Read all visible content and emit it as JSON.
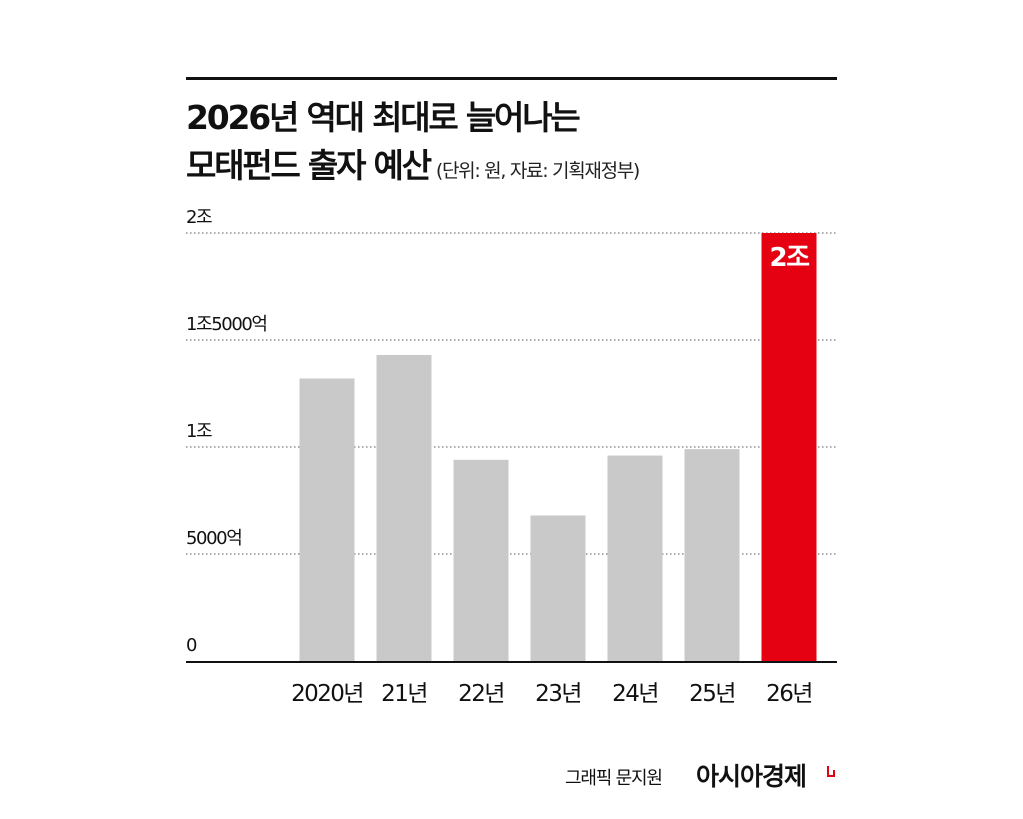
{
  "title": {
    "line1": "2026년 역대 최대로 늘어나는",
    "line2": "모태펀드 출자 예산",
    "unit_note": "(단위: 원, 자료: 기획재정부)"
  },
  "chart_data": {
    "type": "bar",
    "categories": [
      "2020년",
      "21년",
      "22년",
      "23년",
      "24년",
      "25년",
      "26년"
    ],
    "values": [
      13200,
      14300,
      9400,
      6800,
      9600,
      9900,
      20000
    ],
    "ylim": [
      0,
      20000
    ],
    "y_ticks": [
      {
        "value": 0,
        "label": "0"
      },
      {
        "value": 5000,
        "label": "5000억"
      },
      {
        "value": 10000,
        "label": "1조"
      },
      {
        "value": 15000,
        "label": "1조5000억"
      },
      {
        "value": 20000,
        "label": "2조"
      }
    ],
    "data_labels": [
      {
        "index": 6,
        "text": "2조"
      }
    ],
    "colors": {
      "bar": "#c9c9c9",
      "highlight": "#e50012"
    },
    "highlight_index": 6,
    "grid": "dotted horizontal"
  },
  "footer": {
    "credit": "그래픽 문지원",
    "brand": "아시아경제",
    "brand_color": "#e50012"
  }
}
